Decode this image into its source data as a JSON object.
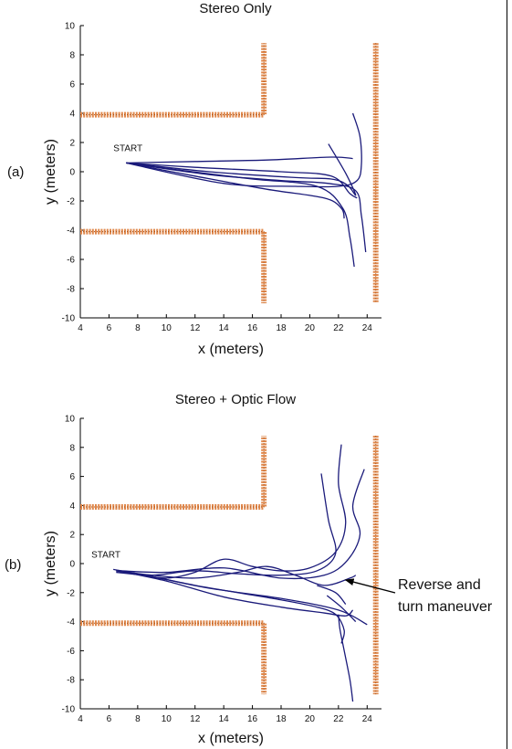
{
  "chart_data": [
    {
      "type": "line",
      "panel_label": "(a)",
      "title": "Stereo Only",
      "xlabel": "x (meters)",
      "ylabel": "y (meters)",
      "xlim": [
        4,
        25
      ],
      "ylim": [
        -10,
        10
      ],
      "xticks": [
        4,
        6,
        8,
        10,
        12,
        14,
        16,
        18,
        20,
        22,
        24
      ],
      "yticks": [
        -10,
        -8,
        -6,
        -4,
        -2,
        0,
        2,
        4,
        6,
        8,
        10
      ],
      "start_label": "START",
      "line_color": "#1a1a7a",
      "wall_color": "#e0874a",
      "walls": [
        {
          "x": [
            4,
            16.8,
            16.8
          ],
          "y": [
            3.9,
            3.9,
            8.8
          ]
        },
        {
          "x": [
            4,
            16.8,
            16.8
          ],
          "y": [
            -4.1,
            -4.1,
            -9
          ]
        },
        {
          "x": [
            24.6,
            24.6
          ],
          "y": [
            8.8,
            -9
          ]
        }
      ],
      "series": [
        {
          "x": [
            7.2,
            12,
            17,
            21.5,
            23.0
          ],
          "y": [
            0.6,
            0.7,
            0.8,
            1.0,
            0.9
          ]
        },
        {
          "x": [
            7.2,
            11,
            16,
            20.5,
            22.3,
            22.8,
            23.1
          ],
          "y": [
            0.6,
            0.1,
            -0.5,
            -1.0,
            -2.5,
            -4.5,
            -6.5
          ]
        },
        {
          "x": [
            7.2,
            12,
            17,
            21,
            22.2,
            22.4
          ],
          "y": [
            0.6,
            -0.3,
            -1.2,
            -1.8,
            -2.5,
            -3.2
          ]
        },
        {
          "x": [
            7.2,
            13,
            18,
            21.3,
            23.2,
            23.6,
            23.9
          ],
          "y": [
            0.6,
            -0.2,
            -0.6,
            -0.8,
            -1.3,
            -3.0,
            -5.5
          ]
        },
        {
          "x": [
            7.2,
            12,
            18,
            21.5,
            22.8,
            23.3
          ],
          "y": [
            0.6,
            0.3,
            0.0,
            -0.3,
            -1.5,
            -1.8
          ]
        },
        {
          "x": [
            7.2,
            14,
            19,
            22,
            23.3,
            23.6,
            23.5,
            23.0
          ],
          "y": [
            0.6,
            -0.8,
            -1.0,
            -1.0,
            -0.6,
            0.5,
            2.4,
            4.0
          ]
        },
        {
          "x": [
            7.2,
            13,
            19,
            21.5,
            22.6,
            23.2,
            22.5,
            21.3
          ],
          "y": [
            0.6,
            0.0,
            -0.4,
            -0.5,
            -0.9,
            -1.6,
            -0.1,
            1.9
          ]
        }
      ]
    },
    {
      "type": "line",
      "panel_label": "(b)",
      "title": "Stereo  + Optic Flow",
      "xlabel": "x (meters)",
      "ylabel": "y (meters)",
      "xlim": [
        4,
        25
      ],
      "ylim": [
        -10,
        10
      ],
      "xticks": [
        4,
        6,
        8,
        10,
        12,
        14,
        16,
        18,
        20,
        22,
        24
      ],
      "yticks": [
        -10,
        -8,
        -6,
        -4,
        -2,
        0,
        2,
        4,
        6,
        8,
        10
      ],
      "start_label": "START",
      "annotation": {
        "lines": [
          "Reverse and",
          "turn maneuver"
        ],
        "arrow_to": {
          "x": 22.3,
          "y": -1.0
        }
      },
      "line_color": "#1a1a7a",
      "wall_color": "#e0874a",
      "walls": [
        {
          "x": [
            4,
            16.8,
            16.8
          ],
          "y": [
            3.9,
            3.9,
            8.8
          ]
        },
        {
          "x": [
            4,
            16.8,
            16.8
          ],
          "y": [
            -4.1,
            -4.1,
            -9
          ]
        },
        {
          "x": [
            24.6,
            24.6
          ],
          "y": [
            8.8,
            -9
          ]
        }
      ],
      "series": [
        {
          "x": [
            6.3,
            8,
            10,
            12,
            14,
            16,
            18,
            20,
            21.8,
            22.5,
            22.0,
            22.2
          ],
          "y": [
            -0.4,
            -0.7,
            -1.0,
            -0.6,
            0.3,
            -0.2,
            -0.5,
            -0.3,
            0.8,
            2.8,
            5.5,
            8.2
          ]
        },
        {
          "x": [
            6.5,
            9,
            12,
            15,
            18,
            20.5,
            21.8,
            21.3,
            20.8
          ],
          "y": [
            -0.6,
            -0.8,
            -0.5,
            -0.7,
            -0.8,
            -0.5,
            0.7,
            3.0,
            6.2
          ]
        },
        {
          "x": [
            6.8,
            10,
            14,
            18,
            21,
            22.6,
            23.5,
            23.0,
            23.8
          ],
          "y": [
            -0.5,
            -0.6,
            -0.3,
            -1.0,
            -0.8,
            0.2,
            2.0,
            4.0,
            6.5
          ]
        },
        {
          "x": [
            6.6,
            9,
            12,
            15,
            17,
            19,
            21,
            22.8,
            23.2
          ],
          "y": [
            -0.5,
            -0.8,
            -1.0,
            -0.6,
            -0.2,
            -0.8,
            -1.5,
            -1.0,
            -0.8
          ]
        },
        {
          "x": [
            6.5,
            9,
            12,
            15,
            18,
            20.5,
            21.8,
            22.4,
            22.2
          ],
          "y": [
            -0.5,
            -0.9,
            -1.5,
            -2.0,
            -2.5,
            -3.0,
            -3.5,
            -4.6,
            -5.5
          ]
        },
        {
          "x": [
            6.6,
            10,
            14,
            18,
            21,
            22.5,
            23.0
          ],
          "y": [
            -0.5,
            -1.2,
            -2.3,
            -3.0,
            -3.4,
            -3.6,
            -3.2
          ]
        },
        {
          "x": [
            6.5,
            9,
            13,
            18,
            22,
            24
          ],
          "y": [
            -0.5,
            -0.9,
            -1.7,
            -2.4,
            -3.2,
            -4.2
          ]
        },
        {
          "x": [
            22.0,
            22.1,
            22.4,
            22.8,
            23.0
          ],
          "y": [
            -3.5,
            -4.5,
            -6.0,
            -8.0,
            -9.5
          ]
        },
        {
          "x": [
            21.2,
            22.2,
            23.2
          ],
          "y": [
            -2.2,
            -3.0,
            -4.0
          ]
        },
        {
          "x": [
            20.5,
            21.8,
            22.5
          ],
          "y": [
            -1.5,
            -2.0,
            -2.8
          ]
        }
      ]
    }
  ]
}
